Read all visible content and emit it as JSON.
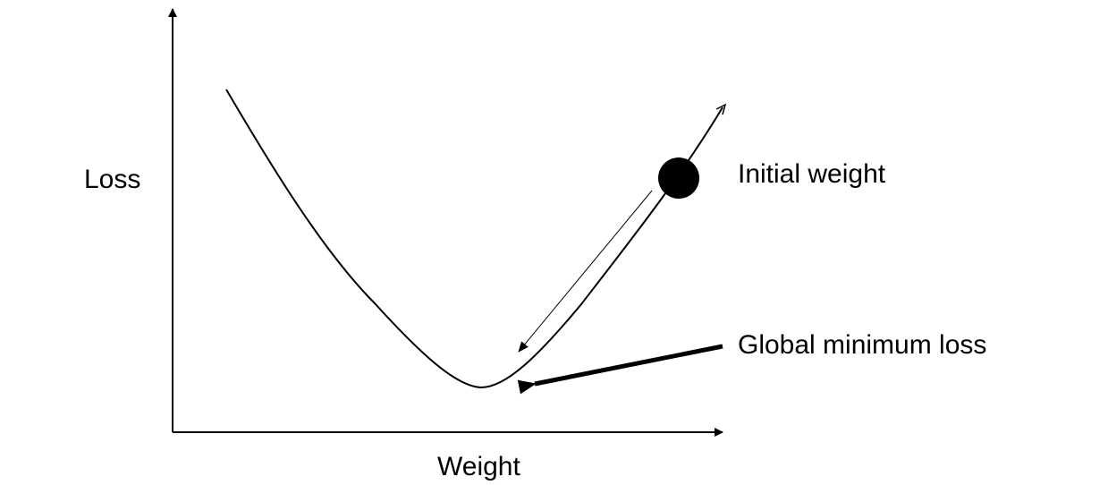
{
  "axes": {
    "x_label": "Weight",
    "y_label": "Loss"
  },
  "annotations": {
    "initial_weight": "Initial weight",
    "global_minimum": "Global minimum loss"
  },
  "colors": {
    "stroke": "#000000",
    "background": "#ffffff"
  }
}
